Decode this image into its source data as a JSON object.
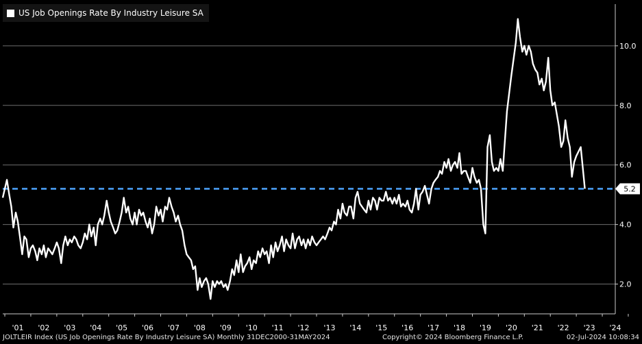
{
  "chart_data": {
    "type": "line",
    "title": "US Job Openings Rate By Industry Leisure SA",
    "xlabel": "",
    "ylabel": "",
    "x_tick_labels": [
      "'01",
      "'02",
      "'03",
      "'04",
      "'05",
      "'06",
      "'07",
      "'08",
      "'09",
      "'10",
      "'11",
      "'12",
      "'13",
      "'14",
      "'15",
      "'16",
      "'17",
      "'18",
      "'19",
      "'20",
      "'21",
      "'22",
      "'23",
      "'24"
    ],
    "y_ticks": [
      2.0,
      4.0,
      6.0,
      8.0,
      10.0
    ],
    "y_tick_labels": [
      "2.0",
      "4.0",
      "6.0",
      "8.0",
      "10.0"
    ],
    "ylim": [
      1.0,
      11.4
    ],
    "xlim": [
      2000.92,
      2024.5
    ],
    "grid": "horizontal",
    "reference_line": {
      "value": 5.2,
      "label": "5.2",
      "color": "#4da6ff",
      "style": "dashed"
    },
    "series": [
      {
        "name": "US Job Openings Rate By Industry Leisure SA",
        "color": "#ffffff",
        "points": [
          [
            2000.92,
            4.9
          ],
          [
            2001.0,
            5.2
          ],
          [
            2001.08,
            5.5
          ],
          [
            2001.17,
            5.0
          ],
          [
            2001.25,
            4.6
          ],
          [
            2001.33,
            3.9
          ],
          [
            2001.42,
            4.4
          ],
          [
            2001.5,
            4.1
          ],
          [
            2001.58,
            3.6
          ],
          [
            2001.67,
            3.0
          ],
          [
            2001.75,
            3.6
          ],
          [
            2001.83,
            3.5
          ],
          [
            2001.92,
            2.9
          ],
          [
            2002.0,
            3.2
          ],
          [
            2002.08,
            3.3
          ],
          [
            2002.17,
            3.1
          ],
          [
            2002.25,
            2.8
          ],
          [
            2002.33,
            3.2
          ],
          [
            2002.42,
            3.0
          ],
          [
            2002.5,
            3.3
          ],
          [
            2002.58,
            2.9
          ],
          [
            2002.67,
            3.2
          ],
          [
            2002.75,
            3.1
          ],
          [
            2002.83,
            3.0
          ],
          [
            2002.92,
            3.2
          ],
          [
            2003.0,
            3.4
          ],
          [
            2003.08,
            3.2
          ],
          [
            2003.17,
            2.7
          ],
          [
            2003.25,
            3.3
          ],
          [
            2003.33,
            3.6
          ],
          [
            2003.42,
            3.3
          ],
          [
            2003.5,
            3.5
          ],
          [
            2003.58,
            3.4
          ],
          [
            2003.67,
            3.6
          ],
          [
            2003.75,
            3.5
          ],
          [
            2003.83,
            3.3
          ],
          [
            2003.92,
            3.2
          ],
          [
            2004.0,
            3.4
          ],
          [
            2004.08,
            3.7
          ],
          [
            2004.17,
            3.5
          ],
          [
            2004.25,
            4.0
          ],
          [
            2004.33,
            3.6
          ],
          [
            2004.42,
            3.9
          ],
          [
            2004.5,
            3.3
          ],
          [
            2004.58,
            4.0
          ],
          [
            2004.67,
            4.2
          ],
          [
            2004.75,
            4.0
          ],
          [
            2004.83,
            4.3
          ],
          [
            2004.92,
            4.8
          ],
          [
            2005.0,
            4.4
          ],
          [
            2005.08,
            4.1
          ],
          [
            2005.17,
            3.9
          ],
          [
            2005.25,
            3.7
          ],
          [
            2005.33,
            3.8
          ],
          [
            2005.42,
            4.1
          ],
          [
            2005.5,
            4.4
          ],
          [
            2005.58,
            4.9
          ],
          [
            2005.67,
            4.4
          ],
          [
            2005.75,
            4.6
          ],
          [
            2005.83,
            4.2
          ],
          [
            2005.92,
            4.0
          ],
          [
            2006.0,
            4.4
          ],
          [
            2006.08,
            4.0
          ],
          [
            2006.17,
            4.5
          ],
          [
            2006.25,
            4.3
          ],
          [
            2006.33,
            4.4
          ],
          [
            2006.42,
            4.1
          ],
          [
            2006.5,
            3.9
          ],
          [
            2006.58,
            4.2
          ],
          [
            2006.67,
            3.7
          ],
          [
            2006.75,
            4.0
          ],
          [
            2006.83,
            4.6
          ],
          [
            2006.92,
            4.3
          ],
          [
            2007.0,
            4.5
          ],
          [
            2007.08,
            4.1
          ],
          [
            2007.17,
            4.6
          ],
          [
            2007.25,
            4.5
          ],
          [
            2007.33,
            4.9
          ],
          [
            2007.42,
            4.6
          ],
          [
            2007.5,
            4.4
          ],
          [
            2007.58,
            4.1
          ],
          [
            2007.67,
            4.3
          ],
          [
            2007.75,
            4.0
          ],
          [
            2007.83,
            3.8
          ],
          [
            2007.92,
            3.3
          ],
          [
            2008.0,
            3.0
          ],
          [
            2008.08,
            2.9
          ],
          [
            2008.17,
            2.8
          ],
          [
            2008.25,
            2.5
          ],
          [
            2008.33,
            2.6
          ],
          [
            2008.42,
            1.8
          ],
          [
            2008.5,
            2.2
          ],
          [
            2008.58,
            1.9
          ],
          [
            2008.67,
            2.1
          ],
          [
            2008.75,
            2.2
          ],
          [
            2008.83,
            2.0
          ],
          [
            2008.92,
            1.5
          ],
          [
            2009.0,
            2.1
          ],
          [
            2009.08,
            1.9
          ],
          [
            2009.17,
            2.1
          ],
          [
            2009.25,
            2.0
          ],
          [
            2009.33,
            2.1
          ],
          [
            2009.42,
            1.9
          ],
          [
            2009.5,
            2.0
          ],
          [
            2009.58,
            1.8
          ],
          [
            2009.67,
            2.1
          ],
          [
            2009.75,
            2.5
          ],
          [
            2009.83,
            2.3
          ],
          [
            2009.92,
            2.8
          ],
          [
            2010.0,
            2.4
          ],
          [
            2010.08,
            3.0
          ],
          [
            2010.17,
            2.4
          ],
          [
            2010.25,
            2.6
          ],
          [
            2010.33,
            2.7
          ],
          [
            2010.42,
            2.9
          ],
          [
            2010.5,
            2.5
          ],
          [
            2010.58,
            2.8
          ],
          [
            2010.67,
            2.7
          ],
          [
            2010.75,
            3.1
          ],
          [
            2010.83,
            2.9
          ],
          [
            2010.92,
            3.2
          ],
          [
            2011.0,
            3.0
          ],
          [
            2011.08,
            3.1
          ],
          [
            2011.17,
            2.7
          ],
          [
            2011.25,
            3.3
          ],
          [
            2011.33,
            2.9
          ],
          [
            2011.42,
            3.4
          ],
          [
            2011.5,
            3.1
          ],
          [
            2011.58,
            3.3
          ],
          [
            2011.67,
            3.6
          ],
          [
            2011.75,
            3.1
          ],
          [
            2011.83,
            3.5
          ],
          [
            2011.92,
            3.3
          ],
          [
            2012.0,
            3.2
          ],
          [
            2012.08,
            3.7
          ],
          [
            2012.17,
            3.2
          ],
          [
            2012.25,
            3.5
          ],
          [
            2012.33,
            3.6
          ],
          [
            2012.42,
            3.3
          ],
          [
            2012.5,
            3.5
          ],
          [
            2012.58,
            3.2
          ],
          [
            2012.67,
            3.5
          ],
          [
            2012.75,
            3.3
          ],
          [
            2012.83,
            3.6
          ],
          [
            2012.92,
            3.4
          ],
          [
            2013.0,
            3.3
          ],
          [
            2013.08,
            3.4
          ],
          [
            2013.17,
            3.5
          ],
          [
            2013.25,
            3.6
          ],
          [
            2013.33,
            3.5
          ],
          [
            2013.42,
            3.7
          ],
          [
            2013.5,
            3.9
          ],
          [
            2013.58,
            3.8
          ],
          [
            2013.67,
            4.1
          ],
          [
            2013.75,
            4.0
          ],
          [
            2013.83,
            4.5
          ],
          [
            2013.92,
            4.2
          ],
          [
            2014.0,
            4.7
          ],
          [
            2014.08,
            4.4
          ],
          [
            2014.17,
            4.3
          ],
          [
            2014.25,
            4.6
          ],
          [
            2014.33,
            4.6
          ],
          [
            2014.42,
            4.2
          ],
          [
            2014.5,
            4.9
          ],
          [
            2014.58,
            5.1
          ],
          [
            2014.67,
            4.7
          ],
          [
            2014.75,
            4.6
          ],
          [
            2014.83,
            4.5
          ],
          [
            2014.92,
            4.4
          ],
          [
            2015.0,
            4.8
          ],
          [
            2015.08,
            4.5
          ],
          [
            2015.17,
            4.9
          ],
          [
            2015.25,
            4.8
          ],
          [
            2015.33,
            4.5
          ],
          [
            2015.42,
            4.9
          ],
          [
            2015.5,
            4.8
          ],
          [
            2015.58,
            4.8
          ],
          [
            2015.67,
            5.1
          ],
          [
            2015.75,
            4.8
          ],
          [
            2015.83,
            4.9
          ],
          [
            2015.92,
            4.7
          ],
          [
            2016.0,
            4.9
          ],
          [
            2016.08,
            4.7
          ],
          [
            2016.17,
            5.0
          ],
          [
            2016.25,
            4.6
          ],
          [
            2016.33,
            4.7
          ],
          [
            2016.42,
            4.6
          ],
          [
            2016.5,
            4.8
          ],
          [
            2016.58,
            4.5
          ],
          [
            2016.67,
            4.4
          ],
          [
            2016.75,
            4.7
          ],
          [
            2016.83,
            5.2
          ],
          [
            2016.92,
            4.5
          ],
          [
            2017.0,
            5.0
          ],
          [
            2017.08,
            5.1
          ],
          [
            2017.17,
            5.3
          ],
          [
            2017.25,
            5.0
          ],
          [
            2017.33,
            4.7
          ],
          [
            2017.42,
            5.2
          ],
          [
            2017.5,
            5.4
          ],
          [
            2017.58,
            5.5
          ],
          [
            2017.67,
            5.6
          ],
          [
            2017.75,
            5.8
          ],
          [
            2017.83,
            5.7
          ],
          [
            2017.92,
            6.1
          ],
          [
            2018.0,
            5.9
          ],
          [
            2018.08,
            6.2
          ],
          [
            2018.17,
            5.8
          ],
          [
            2018.25,
            6.0
          ],
          [
            2018.33,
            6.1
          ],
          [
            2018.42,
            5.9
          ],
          [
            2018.5,
            6.4
          ],
          [
            2018.58,
            5.7
          ],
          [
            2018.67,
            5.8
          ],
          [
            2018.75,
            5.8
          ],
          [
            2018.83,
            5.6
          ],
          [
            2018.92,
            5.4
          ],
          [
            2019.0,
            5.9
          ],
          [
            2019.08,
            5.6
          ],
          [
            2019.17,
            5.4
          ],
          [
            2019.25,
            5.5
          ],
          [
            2019.33,
            5.2
          ],
          [
            2019.42,
            4.0
          ],
          [
            2019.5,
            3.7
          ],
          [
            2019.58,
            6.6
          ],
          [
            2019.67,
            7.0
          ],
          [
            2019.75,
            6.1
          ],
          [
            2019.83,
            5.8
          ],
          [
            2019.92,
            5.9
          ],
          [
            2020.0,
            5.8
          ],
          [
            2020.08,
            6.2
          ],
          [
            2020.17,
            5.8
          ],
          [
            2020.33,
            7.8
          ],
          [
            2020.5,
            9.0
          ],
          [
            2020.67,
            10.1
          ],
          [
            2020.75,
            10.9
          ],
          [
            2020.83,
            10.3
          ],
          [
            2020.92,
            9.8
          ],
          [
            2021.0,
            10.0
          ],
          [
            2021.08,
            9.7
          ],
          [
            2021.17,
            10.0
          ],
          [
            2021.25,
            9.8
          ],
          [
            2021.33,
            9.4
          ],
          [
            2021.42,
            9.2
          ],
          [
            2021.5,
            9.1
          ],
          [
            2021.58,
            8.7
          ],
          [
            2021.67,
            8.9
          ],
          [
            2021.75,
            8.5
          ],
          [
            2021.83,
            8.8
          ],
          [
            2021.92,
            9.6
          ],
          [
            2022.0,
            8.5
          ],
          [
            2022.08,
            8.0
          ],
          [
            2022.17,
            8.1
          ],
          [
            2022.25,
            7.7
          ],
          [
            2022.33,
            7.3
          ],
          [
            2022.42,
            6.6
          ],
          [
            2022.5,
            6.8
          ],
          [
            2022.58,
            7.5
          ],
          [
            2022.67,
            6.9
          ],
          [
            2022.75,
            6.6
          ],
          [
            2022.83,
            5.6
          ],
          [
            2022.92,
            6.1
          ],
          [
            2023.0,
            6.3
          ],
          [
            2023.17,
            6.6
          ],
          [
            2023.33,
            5.2
          ]
        ]
      }
    ]
  },
  "footer": {
    "left": "JOLTLEIR Index (US Job Openings Rate By Industry Leisure SA)  Monthly 31DEC2000-31MAY2024",
    "center": "Copyright© 2024 Bloomberg Finance L.P.",
    "right": "02-Jul-2024 10:08:34"
  },
  "colors": {
    "background": "#000000",
    "line": "#ffffff",
    "grid": "#6e6e6e",
    "reference": "#4da6ff",
    "axis": "#cccccc"
  }
}
